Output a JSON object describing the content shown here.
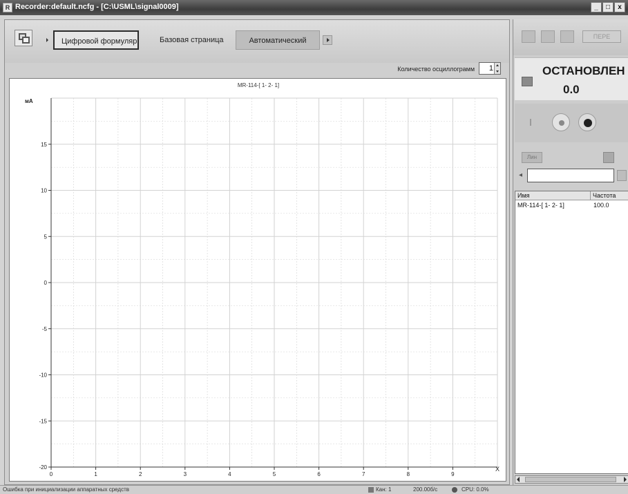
{
  "window": {
    "title": "Recorder:default.ncfg - [C:\\USML\\signal0009]",
    "controls": [
      "_",
      "□",
      "x"
    ]
  },
  "toolbar": {
    "tabs": [
      {
        "label": "Цифровой формуляр",
        "active": true
      },
      {
        "label": "Базовая страница",
        "active": false
      },
      {
        "label": "Автоматический",
        "active": false
      }
    ],
    "osc_count_label": "Количество осциллограмм",
    "osc_count_value": "1"
  },
  "chart_data": {
    "type": "line",
    "title": "MR-114-[ 1- 2- 1]",
    "xlabel": "X",
    "ylabel": "мА",
    "xlim": [
      0,
      10
    ],
    "ylim": [
      -20,
      20
    ],
    "x_ticks": [
      0,
      1,
      2,
      3,
      4,
      5,
      6,
      7,
      8,
      9
    ],
    "y_ticks": [
      -20,
      -15,
      -10,
      -5,
      0,
      5,
      10,
      15
    ],
    "grid": true,
    "series": []
  },
  "right_panel": {
    "status_title": "ОСТАНОВЛЕН",
    "status_value": "0.0",
    "small_btn_label": "Лин",
    "toolbar_disabled_label": "ПЕРЕ",
    "filter_value": "",
    "table": {
      "headers": [
        "Имя",
        "Частота"
      ],
      "rows": [
        [
          "MR-114-[ 1- 2- 1]",
          "100.0"
        ]
      ]
    }
  },
  "statusbar": {
    "message": "Ошибка при инициализации аппаратных средств",
    "channels": "Кан: 1",
    "rate": "200.00б/с",
    "cpu": "CPU: 0.0%"
  },
  "colors": {
    "titlebar": "#3d3d3d",
    "grid": "#d2d2d2",
    "panel": "#d4d4d4"
  }
}
